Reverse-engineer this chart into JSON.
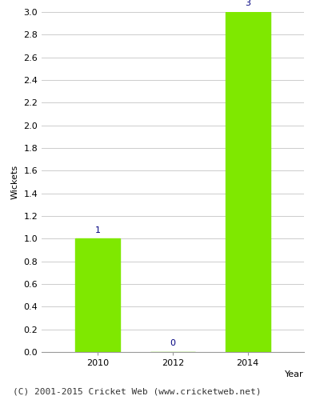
{
  "years": [
    2010,
    2012,
    2014
  ],
  "wickets": [
    1,
    0,
    3
  ],
  "bar_color": "#7FE800",
  "bar_width": 1.2,
  "ylabel": "Wickets",
  "xlabel": "Year",
  "ylim": [
    0.0,
    3.0
  ],
  "yticks": [
    0.0,
    0.2,
    0.4,
    0.6,
    0.8,
    1.0,
    1.2,
    1.4,
    1.6,
    1.8,
    2.0,
    2.2,
    2.4,
    2.6,
    2.8,
    3.0
  ],
  "annotation_color": "#000080",
  "annotation_fontsize": 8,
  "axis_label_fontsize": 8,
  "tick_fontsize": 8,
  "grid_color": "#cccccc",
  "background_color": "#ffffff",
  "footer_text": "(C) 2001-2015 Cricket Web (www.cricketweb.net)",
  "footer_fontsize": 8,
  "footer_color": "#333333"
}
